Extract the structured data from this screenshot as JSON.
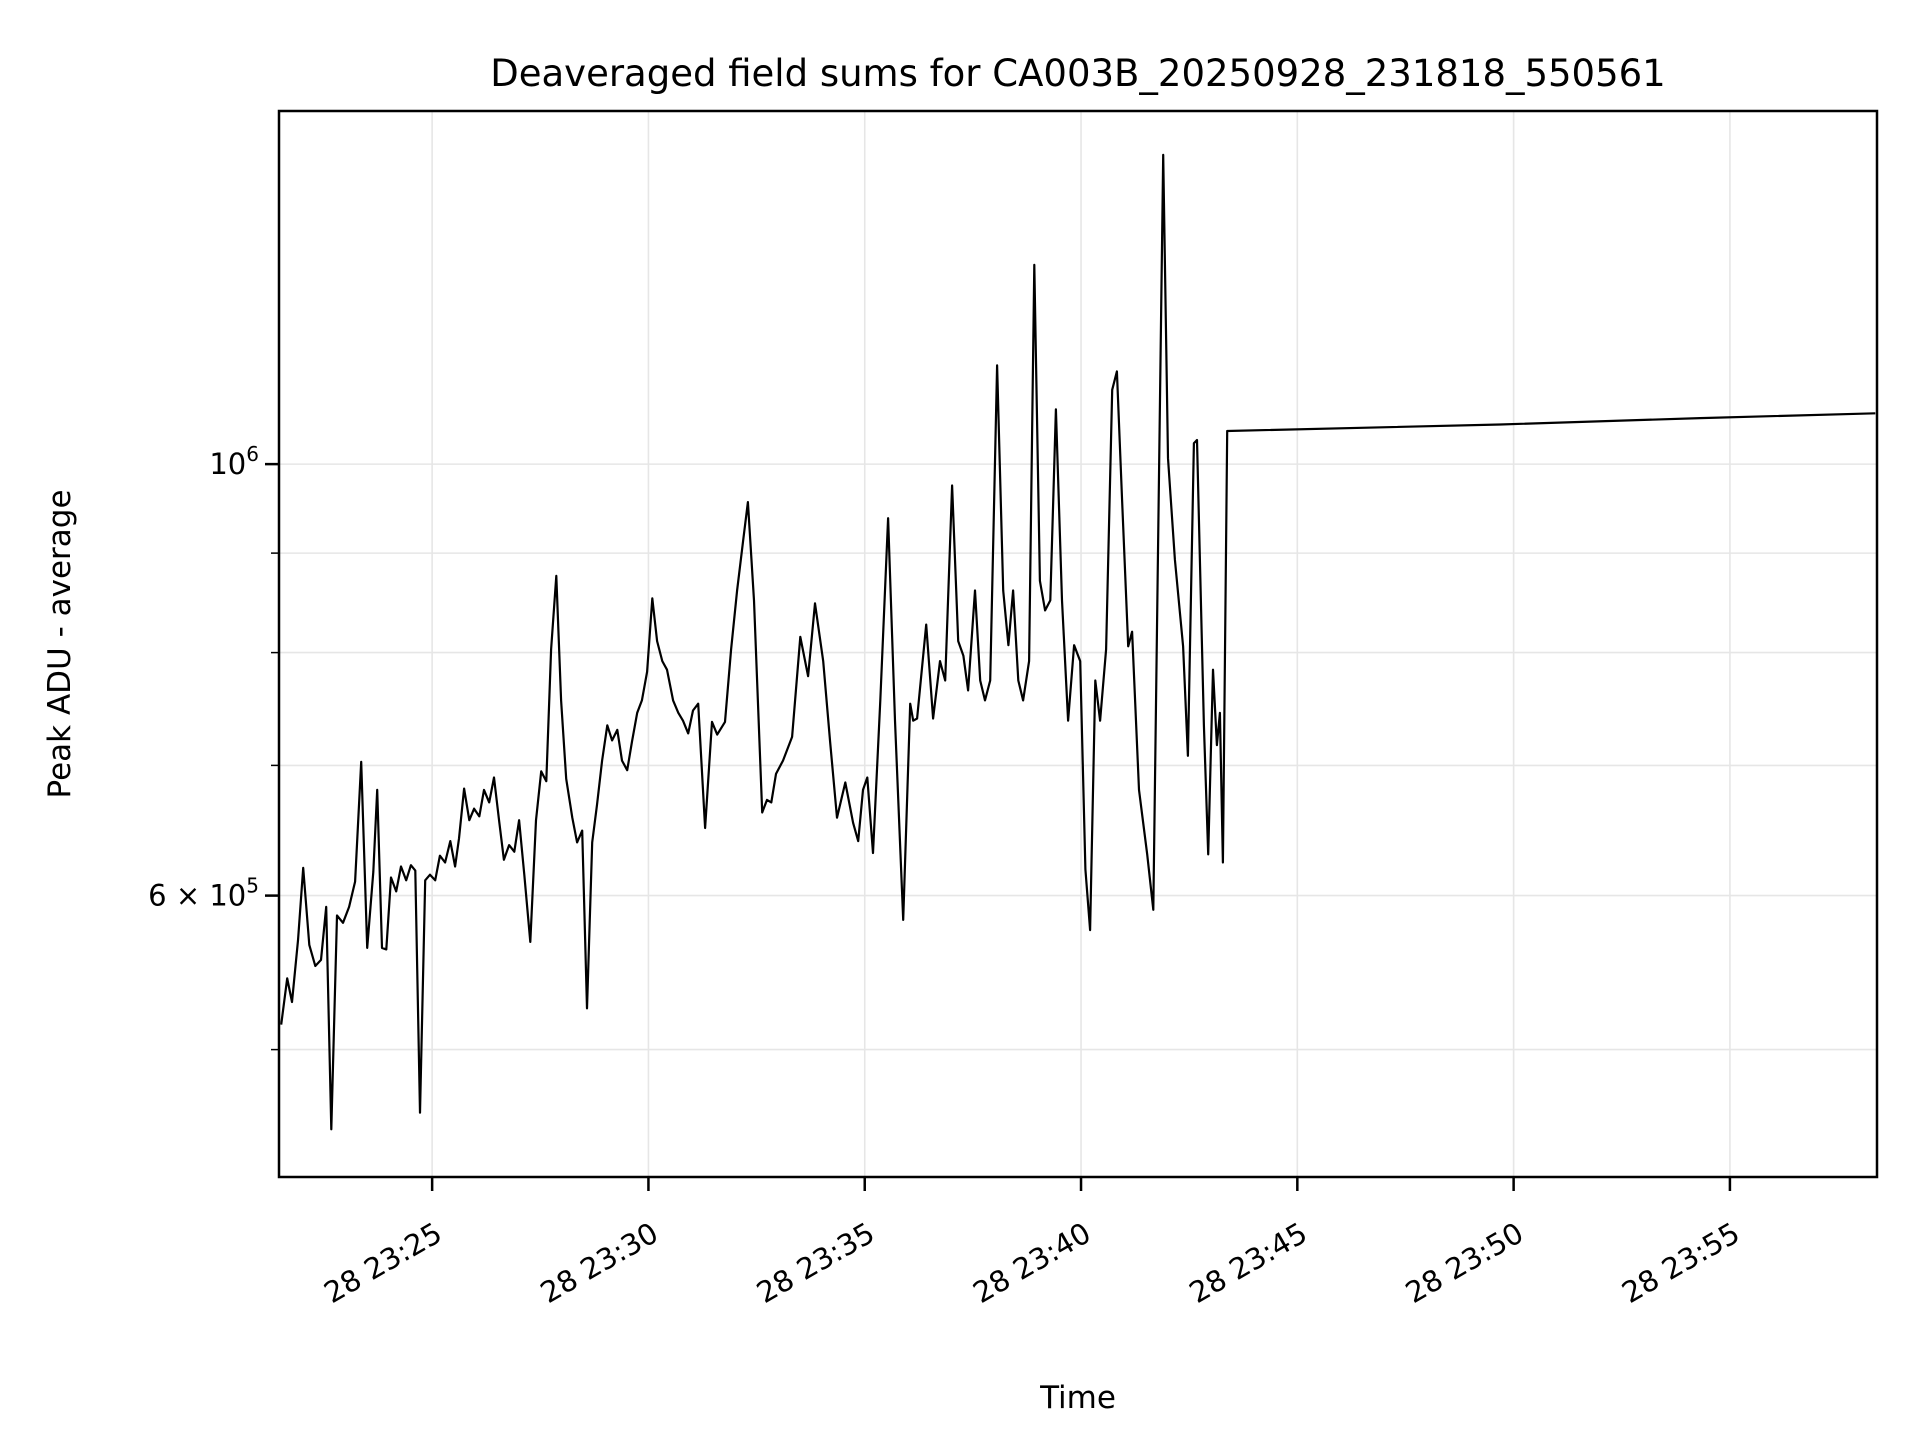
{
  "title": "Deaveraged field sums for CA003B_20250928_231818_550561",
  "chart_data": {
    "type": "line",
    "title": "Deaveraged field sums for CA003B_20250928_231818_550561",
    "xlabel": "Time",
    "ylabel": "Peak ADU - average",
    "legend": null,
    "background": "#ffffff",
    "line_color": "#000000",
    "grid": {
      "show": true,
      "color": "#e6e6e6"
    },
    "x_axis": {
      "unit": "minutes after 23:00 on day 28",
      "range_minutes": [
        21.46,
        58.4
      ],
      "major_ticks": [
        {
          "minutes": 25,
          "label": "28 23:25"
        },
        {
          "minutes": 30,
          "label": "28 23:30"
        },
        {
          "minutes": 35,
          "label": "28 23:35"
        },
        {
          "minutes": 40,
          "label": "28 23:40"
        },
        {
          "minutes": 45,
          "label": "28 23:45"
        },
        {
          "minutes": 50,
          "label": "28 23:50"
        },
        {
          "minutes": 55,
          "label": "28 23:55"
        }
      ],
      "tick_label_rotation_deg": 30
    },
    "y_axis": {
      "scale": "log",
      "range": [
        430000,
        1519000
      ],
      "ticks": [
        {
          "value": 1000000,
          "label_mantissa": "10",
          "label_exponent": "6",
          "major": true
        },
        {
          "value": 900000
        },
        {
          "value": 800000
        },
        {
          "value": 700000
        },
        {
          "value": 600000,
          "label_mantissa": "6 × 10",
          "label_exponent": "5",
          "major": false
        },
        {
          "value": 500000
        }
      ]
    },
    "series": [
      {
        "name": "peak ADU - average",
        "points_t_minutes_value": [
          [
            21.51,
            515000
          ],
          [
            21.65,
            544000
          ],
          [
            21.76,
            529000
          ],
          [
            21.9,
            569000
          ],
          [
            22.02,
            620000
          ],
          [
            22.16,
            566000
          ],
          [
            22.3,
            552000
          ],
          [
            22.43,
            556000
          ],
          [
            22.55,
            592000
          ],
          [
            22.67,
            455000
          ],
          [
            22.8,
            586000
          ],
          [
            22.94,
            581000
          ],
          [
            23.08,
            592000
          ],
          [
            23.22,
            610000
          ],
          [
            23.36,
            703000
          ],
          [
            23.5,
            564000
          ],
          [
            23.64,
            617000
          ],
          [
            23.73,
            680000
          ],
          [
            23.84,
            564000
          ],
          [
            23.94,
            563000
          ],
          [
            24.05,
            613000
          ],
          [
            24.17,
            603000
          ],
          [
            24.28,
            621000
          ],
          [
            24.4,
            611000
          ],
          [
            24.51,
            622000
          ],
          [
            24.61,
            618000
          ],
          [
            24.72,
            464000
          ],
          [
            24.84,
            611000
          ],
          [
            24.95,
            615000
          ],
          [
            25.07,
            611000
          ],
          [
            25.18,
            629000
          ],
          [
            25.3,
            624000
          ],
          [
            25.42,
            640000
          ],
          [
            25.53,
            621000
          ],
          [
            25.62,
            642000
          ],
          [
            25.74,
            681000
          ],
          [
            25.86,
            656000
          ],
          [
            25.97,
            665000
          ],
          [
            26.09,
            659000
          ],
          [
            26.2,
            680000
          ],
          [
            26.32,
            670000
          ],
          [
            26.43,
            690000
          ],
          [
            26.55,
            655000
          ],
          [
            26.66,
            626000
          ],
          [
            26.78,
            637000
          ],
          [
            26.9,
            632000
          ],
          [
            27.01,
            656000
          ],
          [
            27.13,
            615000
          ],
          [
            27.27,
            568000
          ],
          [
            27.4,
            656000
          ],
          [
            27.52,
            695000
          ],
          [
            27.64,
            687000
          ],
          [
            27.75,
            803000
          ],
          [
            27.87,
            876000
          ],
          [
            27.98,
            756000
          ],
          [
            28.1,
            689000
          ],
          [
            28.24,
            658000
          ],
          [
            28.35,
            639000
          ],
          [
            28.47,
            648000
          ],
          [
            28.58,
            525000
          ],
          [
            28.7,
            639000
          ],
          [
            28.81,
            668000
          ],
          [
            28.93,
            704000
          ],
          [
            29.05,
            734000
          ],
          [
            29.16,
            721000
          ],
          [
            29.28,
            730000
          ],
          [
            29.39,
            704000
          ],
          [
            29.51,
            696000
          ],
          [
            29.62,
            720000
          ],
          [
            29.74,
            745000
          ],
          [
            29.85,
            756000
          ],
          [
            29.97,
            782000
          ],
          [
            30.09,
            853000
          ],
          [
            30.2,
            811000
          ],
          [
            30.32,
            792000
          ],
          [
            30.43,
            784000
          ],
          [
            30.57,
            756000
          ],
          [
            30.69,
            745000
          ],
          [
            30.8,
            738000
          ],
          [
            30.92,
            727000
          ],
          [
            31.03,
            747000
          ],
          [
            31.15,
            753000
          ],
          [
            31.31,
            650000
          ],
          [
            31.47,
            737000
          ],
          [
            31.59,
            726000
          ],
          [
            31.77,
            737000
          ],
          [
            31.91,
            803000
          ],
          [
            32.05,
            861000
          ],
          [
            32.19,
            914000
          ],
          [
            32.3,
            956000
          ],
          [
            32.44,
            851000
          ],
          [
            32.63,
            662000
          ],
          [
            32.74,
            672000
          ],
          [
            32.84,
            670000
          ],
          [
            32.95,
            693000
          ],
          [
            33.11,
            704000
          ],
          [
            33.32,
            724000
          ],
          [
            33.51,
            815000
          ],
          [
            33.69,
            778000
          ],
          [
            33.85,
            848000
          ],
          [
            34.04,
            792000
          ],
          [
            34.2,
            720000
          ],
          [
            34.36,
            658000
          ],
          [
            34.55,
            686000
          ],
          [
            34.73,
            654000
          ],
          [
            34.85,
            640000
          ],
          [
            34.96,
            680000
          ],
          [
            35.06,
            690000
          ],
          [
            35.19,
            631000
          ],
          [
            35.36,
            756000
          ],
          [
            35.54,
            938000
          ],
          [
            35.7,
            738000
          ],
          [
            35.89,
            583000
          ],
          [
            36.05,
            753000
          ],
          [
            36.12,
            738000
          ],
          [
            36.21,
            740000
          ],
          [
            36.42,
            827000
          ],
          [
            36.58,
            740000
          ],
          [
            36.74,
            792000
          ],
          [
            36.86,
            774000
          ],
          [
            37.02,
            975000
          ],
          [
            37.16,
            811000
          ],
          [
            37.28,
            797000
          ],
          [
            37.39,
            765000
          ],
          [
            37.55,
            861000
          ],
          [
            37.67,
            774000
          ],
          [
            37.78,
            756000
          ],
          [
            37.9,
            774000
          ],
          [
            38.06,
            1124000
          ],
          [
            38.2,
            861000
          ],
          [
            38.32,
            807000
          ],
          [
            38.43,
            861000
          ],
          [
            38.55,
            774000
          ],
          [
            38.66,
            756000
          ],
          [
            38.8,
            792000
          ],
          [
            38.92,
            1266000
          ],
          [
            39.05,
            871000
          ],
          [
            39.17,
            841000
          ],
          [
            39.29,
            851000
          ],
          [
            39.42,
            1067000
          ],
          [
            39.56,
            851000
          ],
          [
            39.7,
            738000
          ],
          [
            39.84,
            807000
          ],
          [
            39.98,
            792000
          ],
          [
            40.1,
            619000
          ],
          [
            40.21,
            576000
          ],
          [
            40.33,
            774000
          ],
          [
            40.44,
            738000
          ],
          [
            40.58,
            803000
          ],
          [
            40.72,
            1092000
          ],
          [
            40.83,
            1116000
          ],
          [
            40.95,
            958000
          ],
          [
            41.09,
            806000
          ],
          [
            41.18,
            820000
          ],
          [
            41.34,
            680000
          ],
          [
            41.53,
            630000
          ],
          [
            41.67,
            590000
          ],
          [
            41.9,
            1442000
          ],
          [
            42.01,
            1007000
          ],
          [
            42.17,
            893000
          ],
          [
            42.36,
            806000
          ],
          [
            42.47,
            708000
          ],
          [
            42.61,
            1025000
          ],
          [
            42.68,
            1029000
          ],
          [
            42.84,
            734000
          ],
          [
            42.94,
            630000
          ],
          [
            43.05,
            784000
          ],
          [
            43.14,
            717000
          ],
          [
            43.21,
            745000
          ],
          [
            43.28,
            624000
          ],
          [
            43.38,
            1040000
          ],
          [
            49.69,
            1048000
          ],
          [
            54.31,
            1056000
          ],
          [
            58.36,
            1062000
          ]
        ]
      }
    ]
  }
}
